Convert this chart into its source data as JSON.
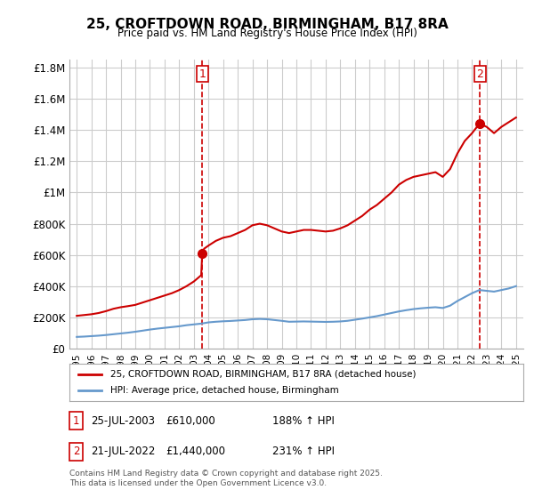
{
  "title": "25, CROFTDOWN ROAD, BIRMINGHAM, B17 8RA",
  "subtitle": "Price paid vs. HM Land Registry's House Price Index (HPI)",
  "ylabel_ticks": [
    "£0",
    "£200K",
    "£400K",
    "£600K",
    "£800K",
    "£1M",
    "£1.2M",
    "£1.4M",
    "£1.6M",
    "£1.8M"
  ],
  "ytick_values": [
    0,
    200000,
    400000,
    600000,
    800000,
    1000000,
    1200000,
    1400000,
    1600000,
    1800000
  ],
  "ylim": [
    0,
    1850000
  ],
  "xlim_start": 1994.5,
  "xlim_end": 2025.5,
  "xtick_years": [
    1995,
    1996,
    1997,
    1998,
    1999,
    2000,
    2001,
    2002,
    2003,
    2004,
    2005,
    2006,
    2007,
    2008,
    2009,
    2010,
    2011,
    2012,
    2013,
    2014,
    2015,
    2016,
    2017,
    2018,
    2019,
    2020,
    2021,
    2022,
    2023,
    2024,
    2025
  ],
  "sale1_x": 2003.57,
  "sale1_y": 610000,
  "sale1_label": "1",
  "sale2_x": 2022.55,
  "sale2_y": 1440000,
  "sale2_label": "2",
  "property_line_color": "#cc0000",
  "hpi_line_color": "#6699cc",
  "vline_color": "#cc0000",
  "marker_color": "#cc0000",
  "grid_color": "#cccccc",
  "background_color": "#ffffff",
  "legend_label_property": "25, CROFTDOWN ROAD, BIRMINGHAM, B17 8RA (detached house)",
  "legend_label_hpi": "HPI: Average price, detached house, Birmingham",
  "footnote": "Contains HM Land Registry data © Crown copyright and database right 2025.\nThis data is licensed under the Open Government Licence v3.0.",
  "table_rows": [
    {
      "num": "1",
      "date": "25-JUL-2003",
      "price": "£610,000",
      "hpi": "188% ↑ HPI"
    },
    {
      "num": "2",
      "date": "21-JUL-2022",
      "price": "£1,440,000",
      "hpi": "231% ↑ HPI"
    }
  ],
  "property_hpi_line": {
    "years": [
      1995,
      1995.5,
      1996,
      1996.5,
      1997,
      1997.5,
      1998,
      1998.5,
      1999,
      1999.5,
      2000,
      2000.5,
      2001,
      2001.5,
      2002,
      2002.5,
      2003,
      2003.5,
      2003.57,
      2003.7,
      2004,
      2004.5,
      2005,
      2005.5,
      2006,
      2006.5,
      2007,
      2007.5,
      2008,
      2008.5,
      2009,
      2009.5,
      2010,
      2010.5,
      2011,
      2011.5,
      2012,
      2012.5,
      2013,
      2013.5,
      2014,
      2014.5,
      2015,
      2015.5,
      2016,
      2016.5,
      2017,
      2017.5,
      2018,
      2018.5,
      2019,
      2019.5,
      2020,
      2020.5,
      2021,
      2021.5,
      2022,
      2022.5,
      2022.55,
      2023,
      2023.5,
      2024,
      2024.5,
      2025
    ],
    "values": [
      210000,
      215000,
      220000,
      228000,
      240000,
      255000,
      265000,
      272000,
      280000,
      295000,
      310000,
      325000,
      340000,
      355000,
      375000,
      400000,
      430000,
      470000,
      610000,
      640000,
      660000,
      690000,
      710000,
      720000,
      740000,
      760000,
      790000,
      800000,
      790000,
      770000,
      750000,
      740000,
      750000,
      760000,
      760000,
      755000,
      750000,
      755000,
      770000,
      790000,
      820000,
      850000,
      890000,
      920000,
      960000,
      1000000,
      1050000,
      1080000,
      1100000,
      1110000,
      1120000,
      1130000,
      1100000,
      1150000,
      1250000,
      1330000,
      1380000,
      1440000,
      1440000,
      1420000,
      1380000,
      1420000,
      1450000,
      1480000
    ]
  },
  "hpi_avg_line": {
    "years": [
      1995,
      1995.5,
      1996,
      1996.5,
      1997,
      1997.5,
      1998,
      1998.5,
      1999,
      1999.5,
      2000,
      2000.5,
      2001,
      2001.5,
      2002,
      2002.5,
      2003,
      2003.5,
      2004,
      2004.5,
      2005,
      2005.5,
      2006,
      2006.5,
      2007,
      2007.5,
      2008,
      2008.5,
      2009,
      2009.5,
      2010,
      2010.5,
      2011,
      2011.5,
      2012,
      2012.5,
      2013,
      2013.5,
      2014,
      2014.5,
      2015,
      2015.5,
      2016,
      2016.5,
      2017,
      2017.5,
      2018,
      2018.5,
      2019,
      2019.5,
      2020,
      2020.5,
      2021,
      2021.5,
      2022,
      2022.5,
      2023,
      2023.5,
      2024,
      2024.5,
      2025
    ],
    "values": [
      75000,
      77000,
      80000,
      83000,
      87000,
      92000,
      97000,
      102000,
      108000,
      115000,
      122000,
      128000,
      133000,
      138000,
      143000,
      150000,
      155000,
      160000,
      168000,
      172000,
      175000,
      177000,
      180000,
      183000,
      188000,
      190000,
      188000,
      183000,
      178000,
      172000,
      173000,
      174000,
      173000,
      172000,
      171000,
      172000,
      174000,
      178000,
      185000,
      192000,
      200000,
      208000,
      218000,
      228000,
      238000,
      246000,
      253000,
      258000,
      262000,
      265000,
      260000,
      275000,
      305000,
      330000,
      355000,
      375000,
      370000,
      365000,
      375000,
      385000,
      400000
    ]
  }
}
